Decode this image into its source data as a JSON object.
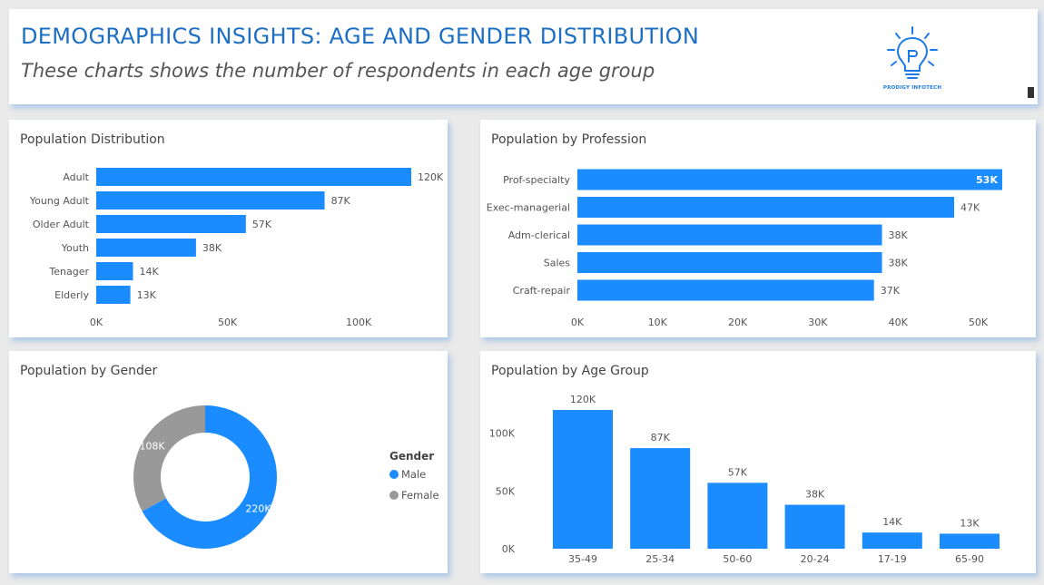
{
  "header": {
    "title": "DEMOGRAPHICS INSIGHTS: AGE AND GENDER DISTRIBUTION",
    "subtitle": "These charts shows the number of respondents in each age group",
    "logo_text": "PRODIGY INFOTECH",
    "logo_icon": "lightbulb-icon"
  },
  "colors": {
    "bar": "#1a8cff",
    "male": "#1a8cff",
    "female": "#999999"
  },
  "chart_data": [
    {
      "id": "dist",
      "type": "bar",
      "orientation": "horizontal",
      "title": "Population Distribution",
      "categories": [
        "Adult",
        "Young Adult",
        "Older Adult",
        "Youth",
        "Tenager",
        "Elderly"
      ],
      "values": [
        120,
        87,
        57,
        38,
        14,
        13
      ],
      "value_labels": [
        "120K",
        "87K",
        "57K",
        "38K",
        "14K",
        "13K"
      ],
      "xlim": [
        0,
        120
      ],
      "ticks": [
        0,
        50,
        100
      ],
      "tick_labels": [
        "0K",
        "50K",
        "100K"
      ],
      "grid": false
    },
    {
      "id": "prof",
      "type": "bar",
      "orientation": "horizontal",
      "title": "Population by Profession",
      "categories": [
        "Prof-specialty",
        "Exec-managerial",
        "Adm-clerical",
        "Sales",
        "Craft-repair"
      ],
      "values": [
        53,
        47,
        38,
        38,
        37
      ],
      "value_labels": [
        "53K",
        "47K",
        "38K",
        "38K",
        "37K"
      ],
      "xlim": [
        0,
        53
      ],
      "ticks": [
        0,
        10,
        20,
        30,
        40,
        50
      ],
      "tick_labels": [
        "0K",
        "10K",
        "20K",
        "30K",
        "40K",
        "50K"
      ],
      "grid": false
    },
    {
      "id": "gender",
      "type": "pie",
      "donut": true,
      "title": "Population by Gender",
      "legend_title": "Gender",
      "legend_position": "right",
      "slices": [
        {
          "name": "Male",
          "value": 220,
          "label": "220K",
          "color": "#1a8cff"
        },
        {
          "name": "Female",
          "value": 108,
          "label": "108K",
          "color": "#999999"
        }
      ]
    },
    {
      "id": "age",
      "type": "bar",
      "orientation": "vertical",
      "title": "Population by Age Group",
      "categories": [
        "35-49",
        "25-34",
        "50-60",
        "20-24",
        "17-19",
        "65-90"
      ],
      "values": [
        120,
        87,
        57,
        38,
        14,
        13
      ],
      "value_labels": [
        "120K",
        "87K",
        "57K",
        "38K",
        "14K",
        "13K"
      ],
      "ylim": [
        0,
        120
      ],
      "ticks": [
        0,
        50,
        100
      ],
      "tick_labels": [
        "0K",
        "50K",
        "100K"
      ],
      "grid": false
    }
  ]
}
